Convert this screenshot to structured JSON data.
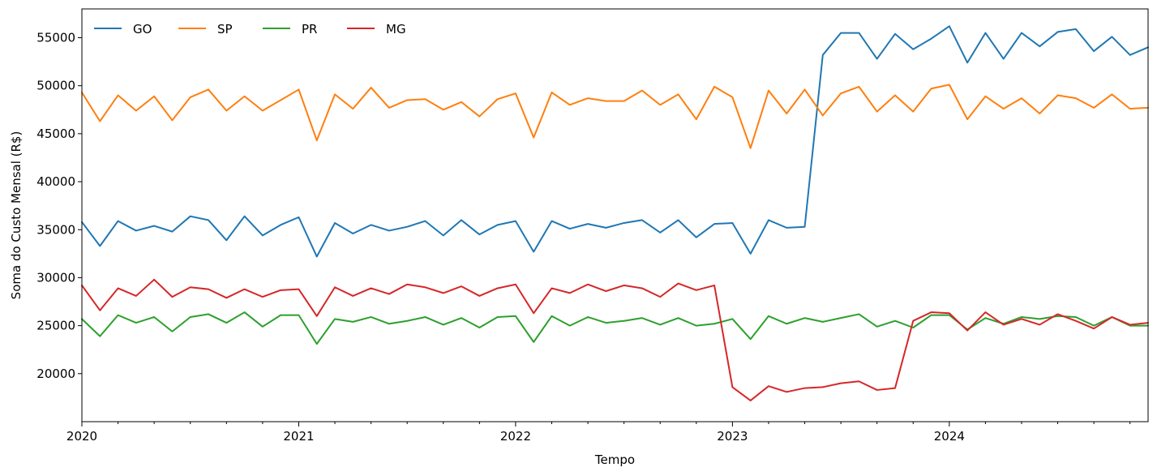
{
  "chart_data": {
    "type": "line",
    "title": "",
    "xlabel": "Tempo",
    "ylabel": "Soma do Custo Mensal (R$)",
    "x_start": "2020-01",
    "x_end": "2024-12",
    "xlim": [
      "2020-01",
      "2024-12"
    ],
    "ylim": [
      15000,
      58000
    ],
    "x_ticks": [
      "2020",
      "2021",
      "2022",
      "2023",
      "2024"
    ],
    "y_ticks": [
      20000,
      25000,
      30000,
      35000,
      40000,
      45000,
      50000,
      55000
    ],
    "legend": {
      "placement": "top-left",
      "ncol": 4
    },
    "grid": false,
    "x": [
      "2020-01",
      "2020-02",
      "2020-03",
      "2020-04",
      "2020-05",
      "2020-06",
      "2020-07",
      "2020-08",
      "2020-09",
      "2020-10",
      "2020-11",
      "2020-12",
      "2021-01",
      "2021-02",
      "2021-03",
      "2021-04",
      "2021-05",
      "2021-06",
      "2021-07",
      "2021-08",
      "2021-09",
      "2021-10",
      "2021-11",
      "2021-12",
      "2022-01",
      "2022-02",
      "2022-03",
      "2022-04",
      "2022-05",
      "2022-06",
      "2022-07",
      "2022-08",
      "2022-09",
      "2022-10",
      "2022-11",
      "2022-12",
      "2023-01",
      "2023-02",
      "2023-03",
      "2023-04",
      "2023-05",
      "2023-06",
      "2023-07",
      "2023-08",
      "2023-09",
      "2023-10",
      "2023-11",
      "2023-12",
      "2024-01",
      "2024-02",
      "2024-03",
      "2024-04",
      "2024-05",
      "2024-06",
      "2024-07",
      "2024-08",
      "2024-09",
      "2024-10",
      "2024-11",
      "2024-12"
    ],
    "series": [
      {
        "name": "GO",
        "color": "#1f77b4",
        "values": [
          35800,
          33300,
          35900,
          34900,
          35400,
          34800,
          36400,
          36000,
          33900,
          36400,
          34400,
          35500,
          36300,
          32200,
          35700,
          34600,
          35500,
          34900,
          35300,
          35900,
          34400,
          36000,
          34500,
          35500,
          35900,
          32700,
          35900,
          35100,
          35600,
          35200,
          35700,
          36000,
          34700,
          36000,
          34200,
          35600,
          35700,
          32500,
          36000,
          35200,
          35300,
          53200,
          55500,
          55500,
          52800,
          55400,
          53800,
          54900,
          56200,
          52400,
          55500,
          52800,
          55500,
          54100,
          55600,
          55900,
          53600,
          55100,
          53200,
          54000
        ]
      },
      {
        "name": "SP",
        "color": "#ff7f0e",
        "values": [
          49300,
          46300,
          49000,
          47400,
          48900,
          46400,
          48800,
          49600,
          47400,
          48900,
          47400,
          48500,
          49600,
          44300,
          49100,
          47600,
          49800,
          47700,
          48500,
          48600,
          47500,
          48300,
          46800,
          48600,
          49200,
          44600,
          49300,
          48000,
          48700,
          48400,
          48400,
          49500,
          48000,
          49100,
          46500,
          49900,
          48800,
          43500,
          49500,
          47100,
          49600,
          46900,
          49200,
          49900,
          47300,
          49000,
          47300,
          49700,
          50100,
          46500,
          48900,
          47600,
          48700,
          47100,
          49000,
          48700,
          47700,
          49100,
          47600,
          47700
        ]
      },
      {
        "name": "PR",
        "color": "#2ca02c",
        "values": [
          25700,
          23900,
          26100,
          25300,
          25900,
          24400,
          25900,
          26200,
          25300,
          26400,
          24900,
          26100,
          26100,
          23100,
          25700,
          25400,
          25900,
          25200,
          25500,
          25900,
          25100,
          25800,
          24800,
          25900,
          26000,
          23300,
          26000,
          25000,
          25900,
          25300,
          25500,
          25800,
          25100,
          25800,
          25000,
          25200,
          25700,
          23600,
          26000,
          25200,
          25800,
          25400,
          25800,
          26200,
          24900,
          25500,
          24800,
          26100,
          26100,
          24600,
          25800,
          25200,
          25900,
          25700,
          26000,
          25900,
          25000,
          25900,
          25000,
          25000
        ]
      },
      {
        "name": "MG",
        "color": "#d62728",
        "values": [
          29200,
          26600,
          28900,
          28100,
          29800,
          28000,
          29000,
          28800,
          27900,
          28800,
          28000,
          28700,
          28800,
          26000,
          29000,
          28100,
          28900,
          28300,
          29300,
          29000,
          28400,
          29100,
          28100,
          28900,
          29300,
          26300,
          28900,
          28400,
          29300,
          28600,
          29200,
          28900,
          28000,
          29400,
          28700,
          29200,
          18600,
          17200,
          18700,
          18100,
          18500,
          18600,
          19000,
          19200,
          18300,
          18500,
          25500,
          26400,
          26300,
          24500,
          26400,
          25100,
          25700,
          25100,
          26200,
          25500,
          24700,
          25900,
          25100,
          25300
        ]
      }
    ]
  }
}
